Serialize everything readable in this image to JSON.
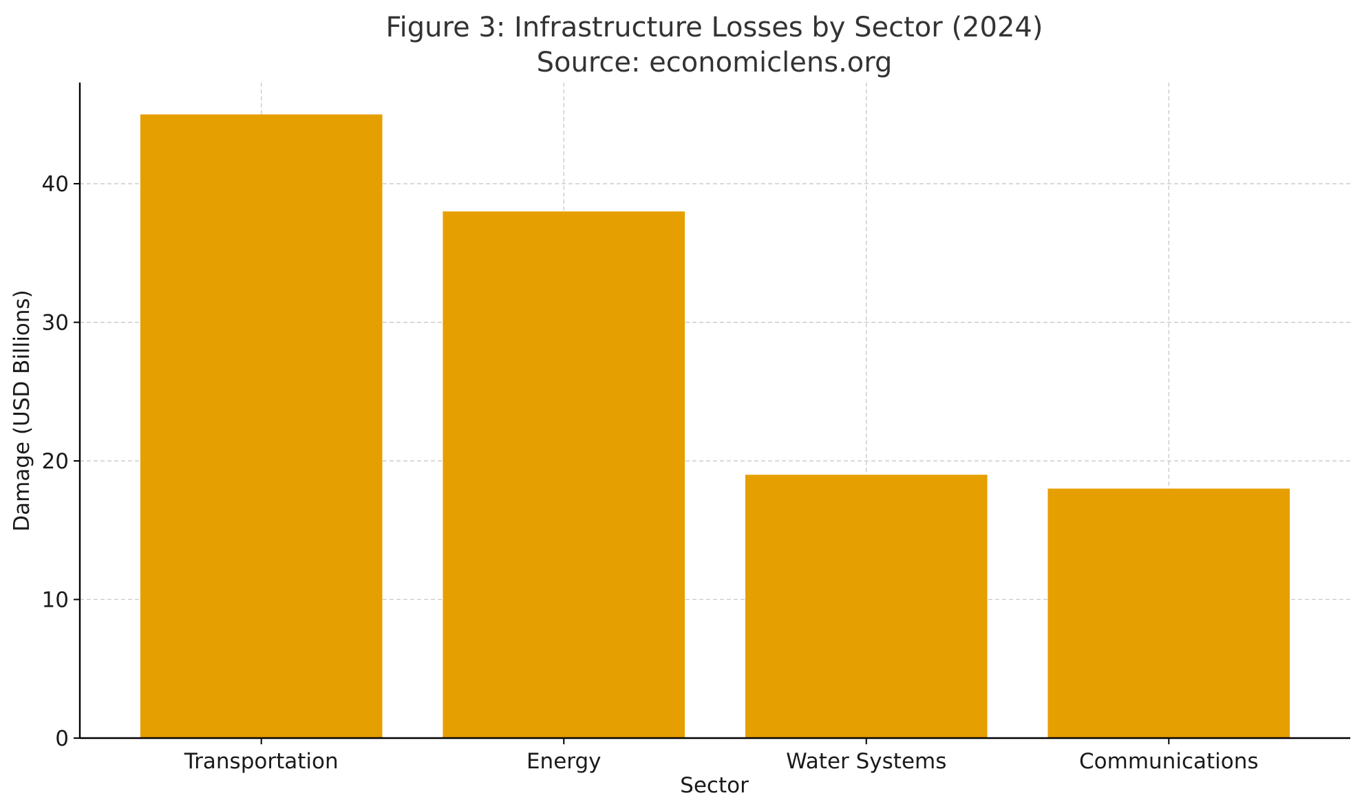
{
  "chart_data": {
    "type": "bar",
    "title": "Figure 3: Infrastructure Losses by Sector (2024)",
    "subtitle": "Source: economiclens.org",
    "xlabel": "Sector",
    "ylabel": "Damage (USD Billions)",
    "categories": [
      "Transportation",
      "Energy",
      "Water Systems",
      "Communications"
    ],
    "values": [
      45,
      38,
      19,
      18
    ],
    "ylim": [
      0,
      47.3
    ],
    "yticks": [
      0,
      10,
      20,
      30,
      40
    ],
    "ytick_labels": [
      "0",
      "10",
      "20",
      "30",
      "40"
    ],
    "grid": true,
    "bar_color": "#E69F00"
  }
}
